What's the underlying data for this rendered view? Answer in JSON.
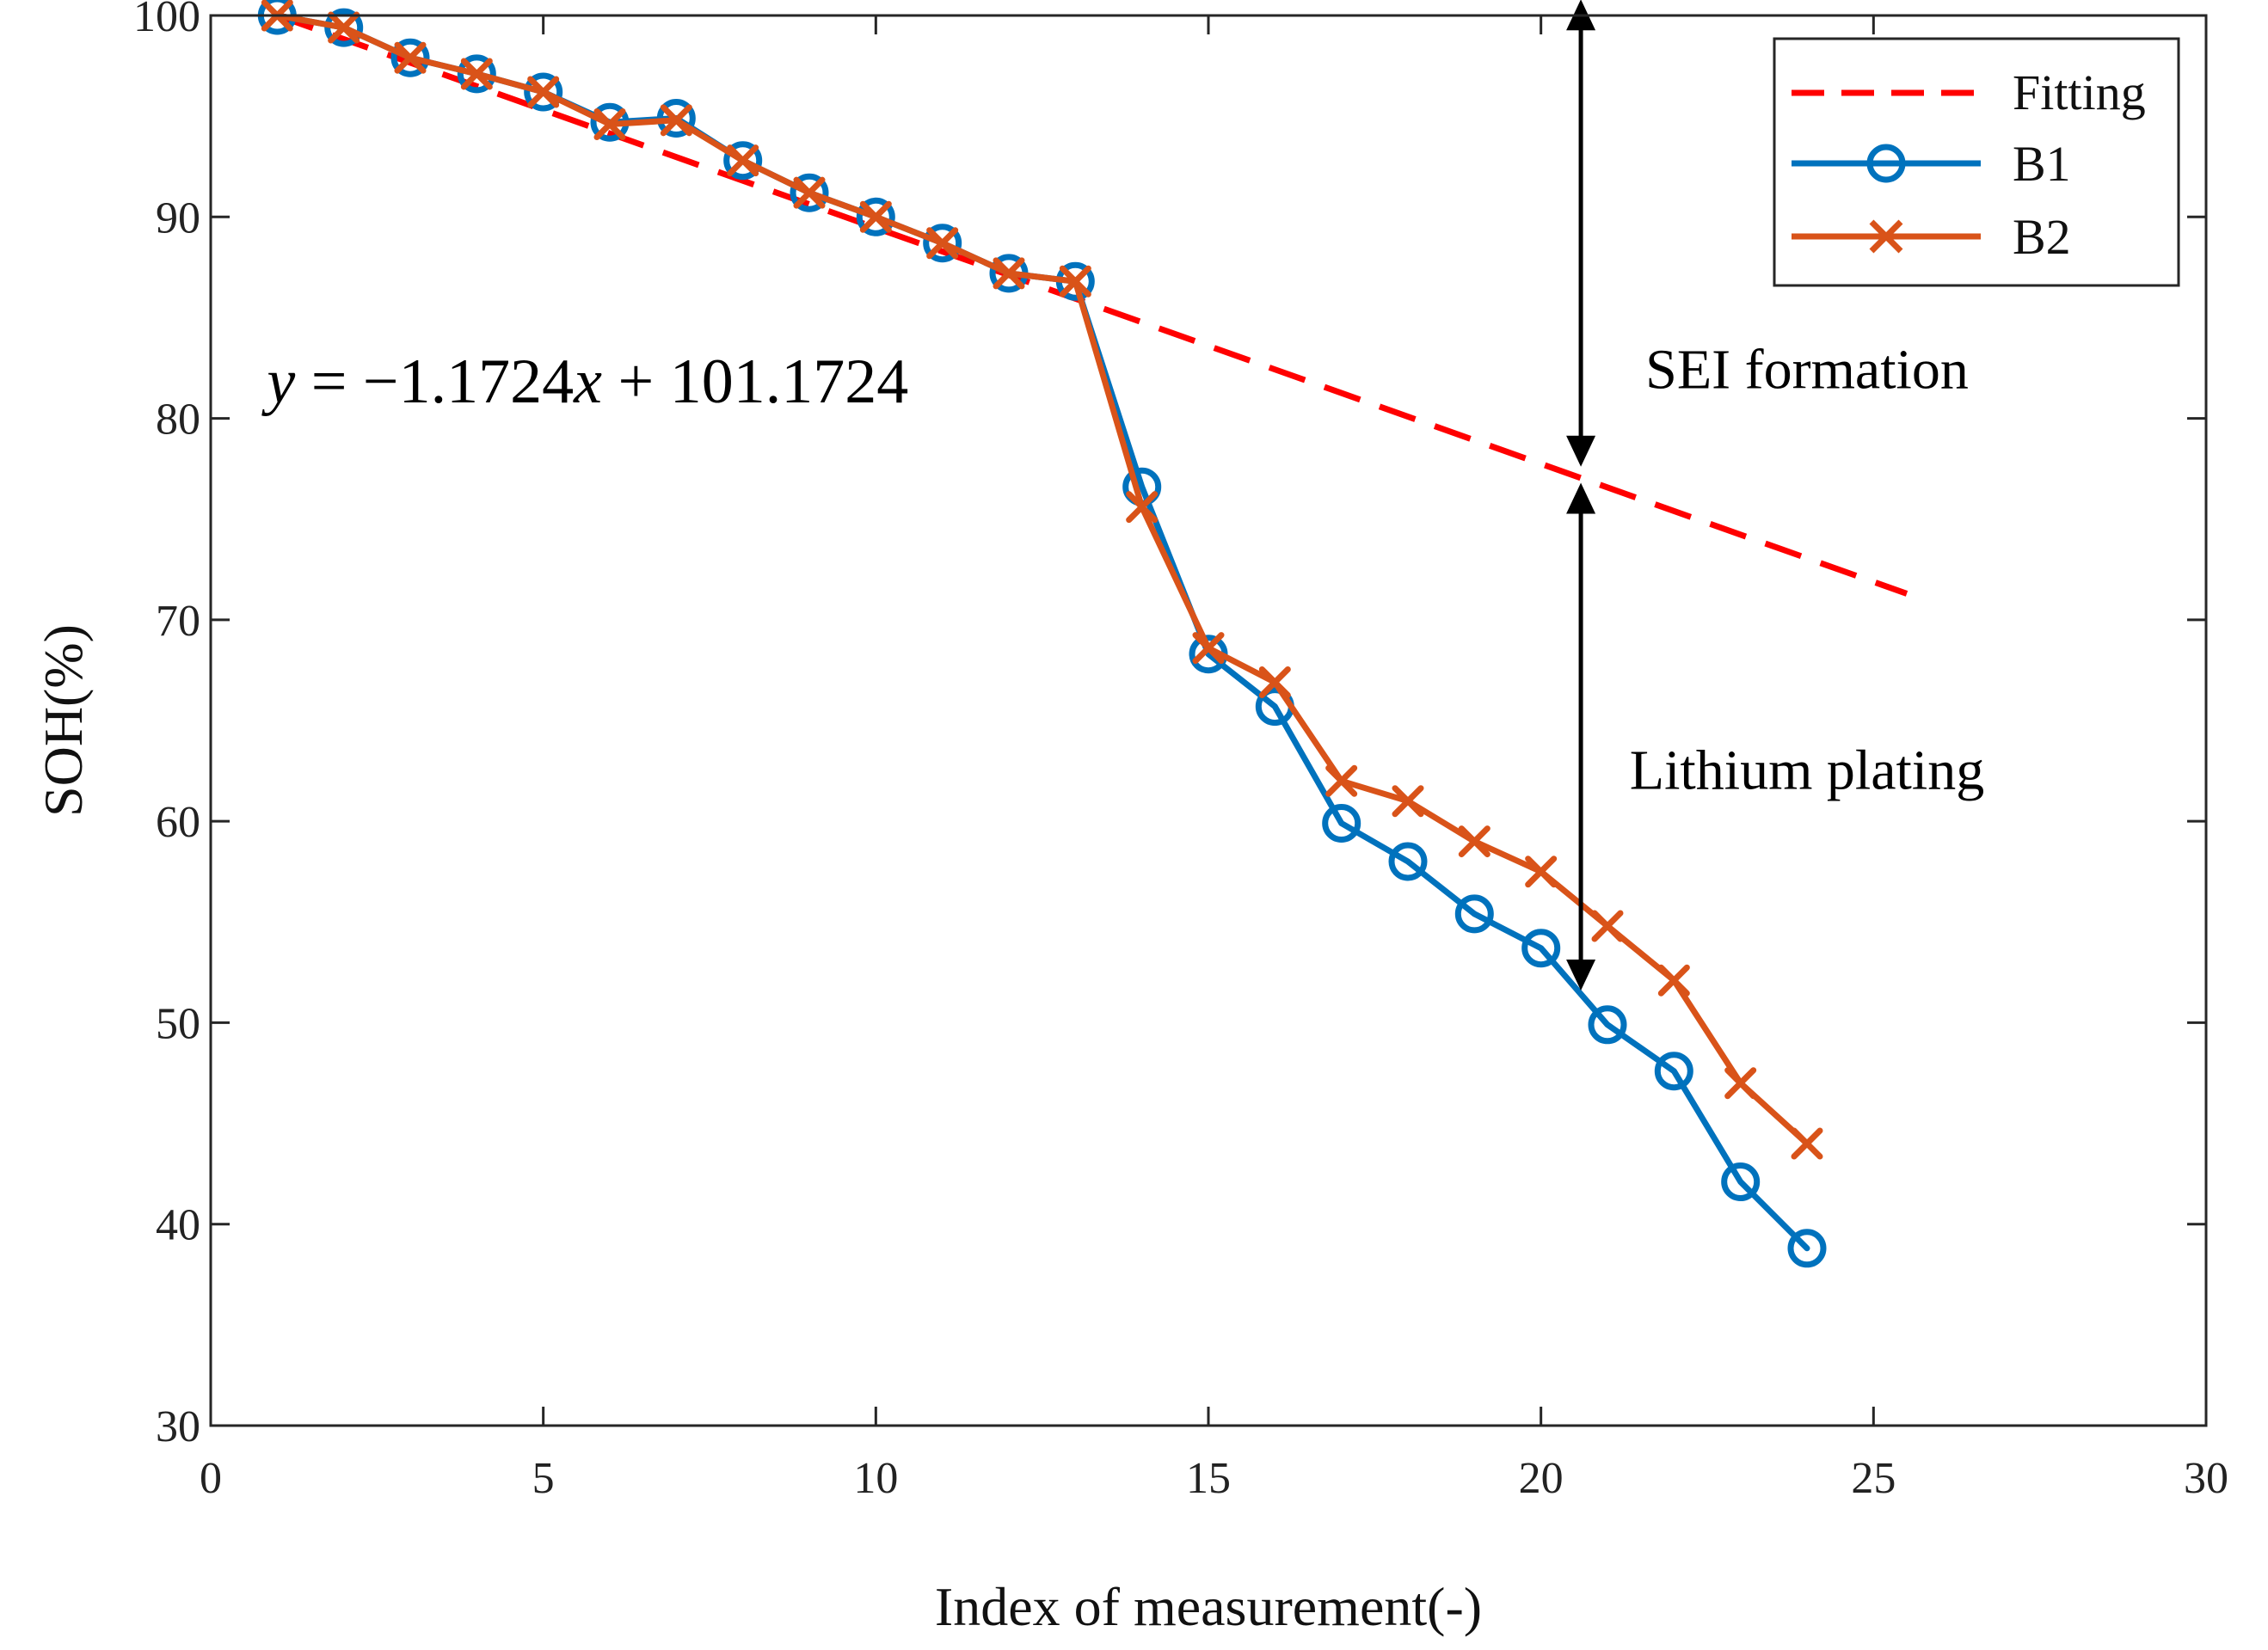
{
  "chart_data": {
    "type": "line",
    "xlabel": "Index of measurement(-)",
    "ylabel": "SOH(%)",
    "xlim": [
      0,
      30
    ],
    "ylim": [
      30,
      100
    ],
    "xticks": [
      0,
      5,
      10,
      15,
      20,
      25,
      30
    ],
    "yticks": [
      30,
      40,
      50,
      60,
      70,
      80,
      90,
      100
    ],
    "grid": false,
    "legend_position": "top-right",
    "series": [
      {
        "name": "Fitting",
        "style": "dashed",
        "color": "#ff0000",
        "x": [
          1,
          25.5
        ],
        "y": [
          100,
          71.3
        ]
      },
      {
        "name": "B1",
        "marker": "circle",
        "color": "#0072bd",
        "x": [
          1,
          2,
          3,
          4,
          5,
          6,
          7,
          8,
          9,
          10,
          11,
          12,
          13,
          14,
          15,
          16,
          17,
          18,
          19,
          20,
          21,
          22,
          23,
          24
        ],
        "y": [
          100,
          99.4,
          97.9,
          97.1,
          96.2,
          94.7,
          94.9,
          92.8,
          91.2,
          90,
          88.7,
          87.2,
          86.8,
          76.6,
          68.3,
          65.7,
          59.9,
          58,
          55.4,
          53.7,
          49.9,
          47.6,
          42.1,
          38.8
        ]
      },
      {
        "name": "B2",
        "marker": "x",
        "color": "#d95319",
        "x": [
          1,
          2,
          3,
          4,
          5,
          6,
          7,
          8,
          9,
          10,
          11,
          12,
          13,
          14,
          15,
          16,
          17,
          18,
          19,
          20,
          21,
          22,
          23,
          24
        ],
        "y": [
          100,
          99.4,
          97.9,
          97.1,
          96.2,
          94.6,
          94.8,
          92.8,
          91.2,
          90,
          88.7,
          87.2,
          86.8,
          75.6,
          68.6,
          66.9,
          62,
          61,
          59,
          57.5,
          54.8,
          52.1,
          47,
          44
        ]
      }
    ],
    "annotations": [
      {
        "text": "SEI formation",
        "x": 24,
        "y": 81.5
      },
      {
        "text": "Lithium plating",
        "x": 24,
        "y": 61.6
      }
    ],
    "equation": {
      "y": "y",
      "eq": " = ",
      "minus": "−",
      "term": "1.1724",
      "x": "x",
      "plus": " + ",
      "const": "101.1724",
      "x_pos": 1,
      "y_pos": 80.8
    },
    "arrows": [
      {
        "x": 20.6,
        "from": 100.8,
        "to": 77.6
      },
      {
        "x": 20.6,
        "from": 76.8,
        "to": 51.6
      }
    ]
  }
}
